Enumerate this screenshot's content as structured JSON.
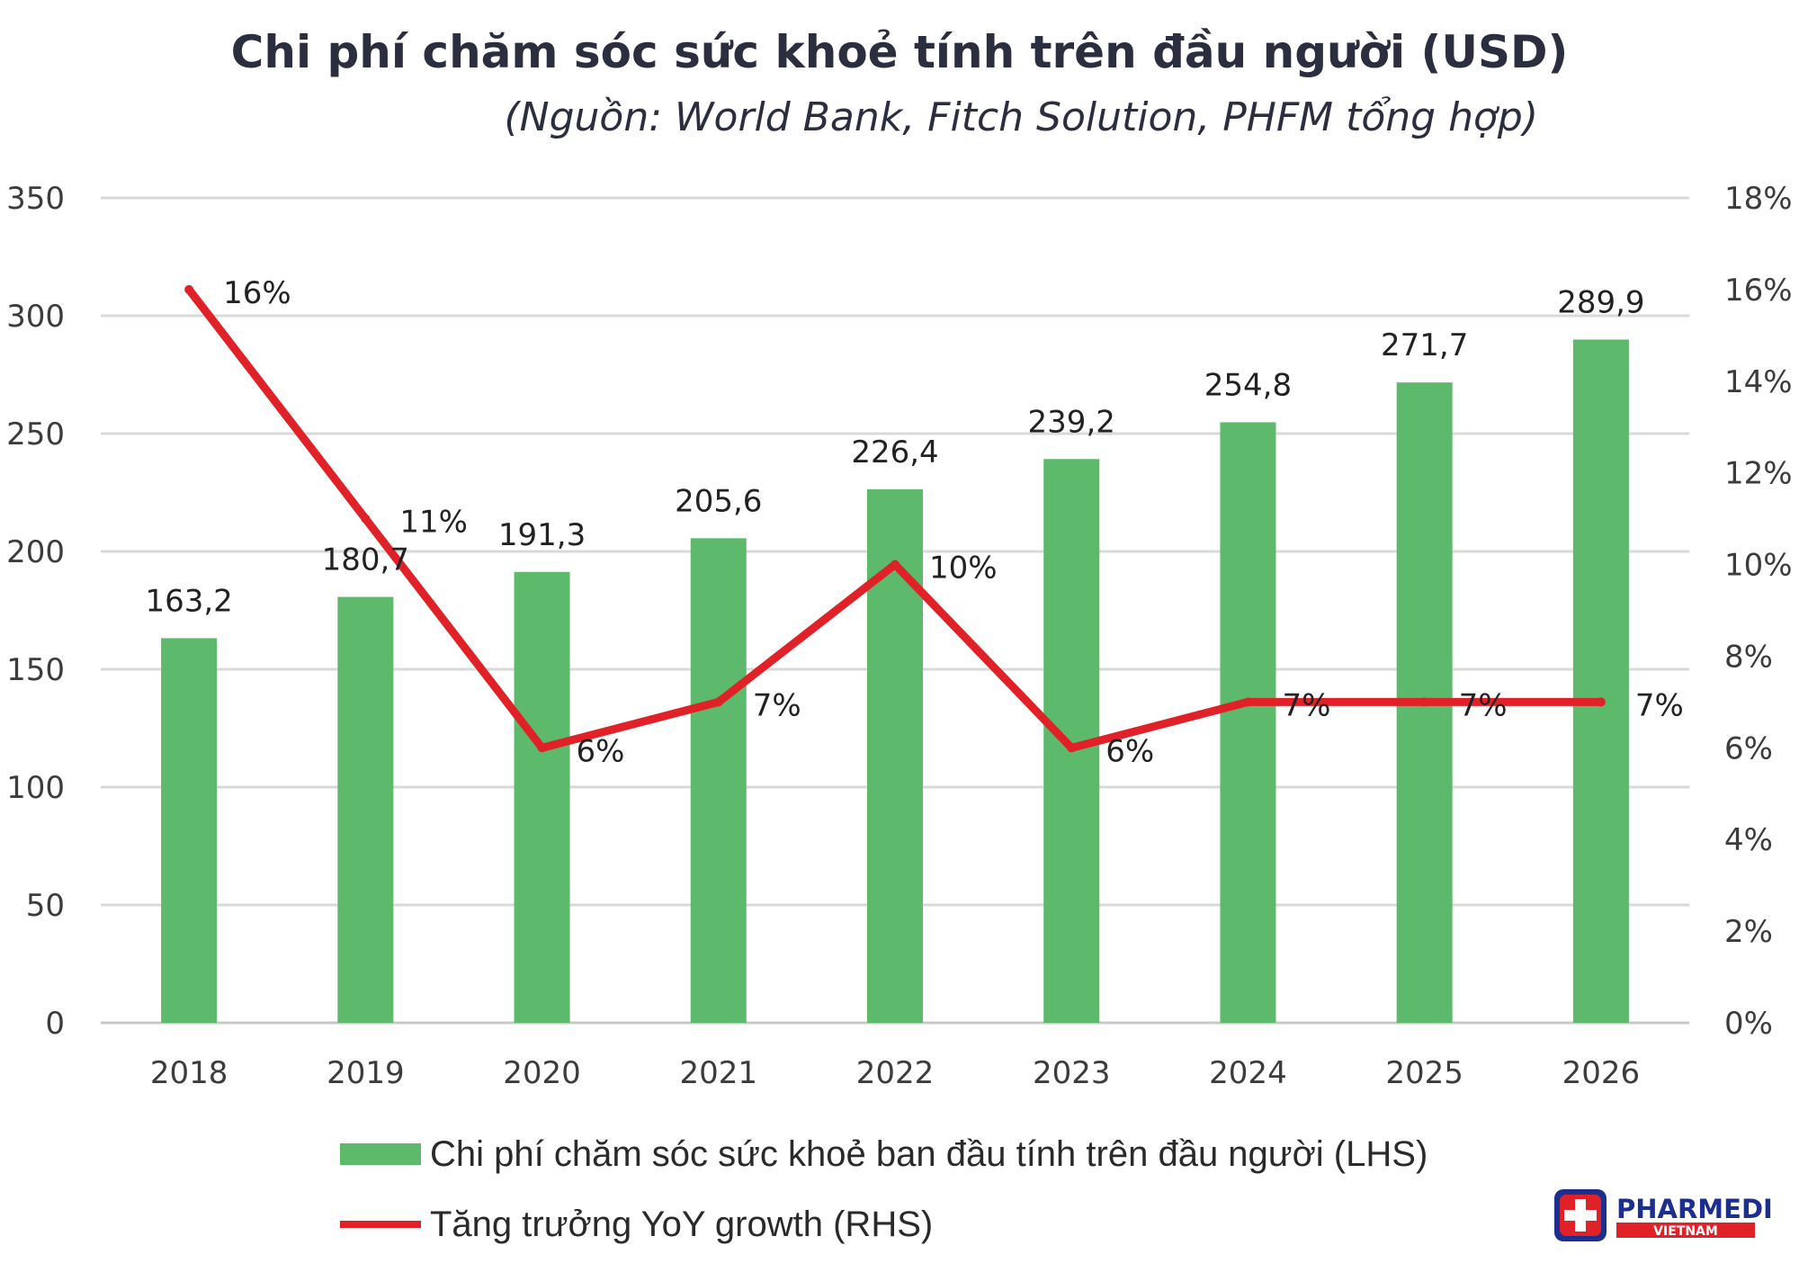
{
  "chart_data": {
    "type": "bar+line",
    "title": "Chi phí chăm sóc sức khoẻ tính trên đầu người (USD)",
    "subtitle": "(Nguồn: World Bank, Fitch Solution, PHFM tổng hợp)",
    "categories": [
      "2018",
      "2019",
      "2020",
      "2021",
      "2022",
      "2023",
      "2024",
      "2025",
      "2026"
    ],
    "series": [
      {
        "name": "Chi phí chăm sóc sức khoẻ ban đầu tính trên đầu người (LHS)",
        "type": "bar",
        "axis": "left",
        "color": "#5db96c",
        "values": [
          163.2,
          180.7,
          191.3,
          205.6,
          226.4,
          239.2,
          254.8,
          271.7,
          289.9
        ],
        "labels": [
          "163,2",
          "180,7",
          "191,3",
          "205,6",
          "226,4",
          "239,2",
          "254,8",
          "271,7",
          "289,9"
        ]
      },
      {
        "name": "Tăng trưởng YoY growth (RHS)",
        "type": "line",
        "axis": "right",
        "color": "#e02228",
        "values": [
          16,
          11,
          6,
          7,
          10,
          6,
          7,
          7,
          7
        ],
        "labels": [
          "16%",
          "11%",
          "6%",
          "7%",
          "10%",
          "6%",
          "7%",
          "7%",
          "7%"
        ]
      }
    ],
    "y_left": {
      "min": 0,
      "max": 350,
      "ticks": [
        "0",
        "50",
        "100",
        "150",
        "200",
        "250",
        "300",
        "350"
      ]
    },
    "y_right": {
      "min": 0,
      "max": 18,
      "ticks": [
        "0%",
        "2%",
        "4%",
        "6%",
        "8%",
        "10%",
        "12%",
        "14%",
        "16%",
        "18%"
      ]
    },
    "grid": true,
    "legend_position": "bottom"
  },
  "logo": {
    "name": "PHARMEDI",
    "sub": "VIETNAM",
    "icon": "medical-cross-icon"
  }
}
